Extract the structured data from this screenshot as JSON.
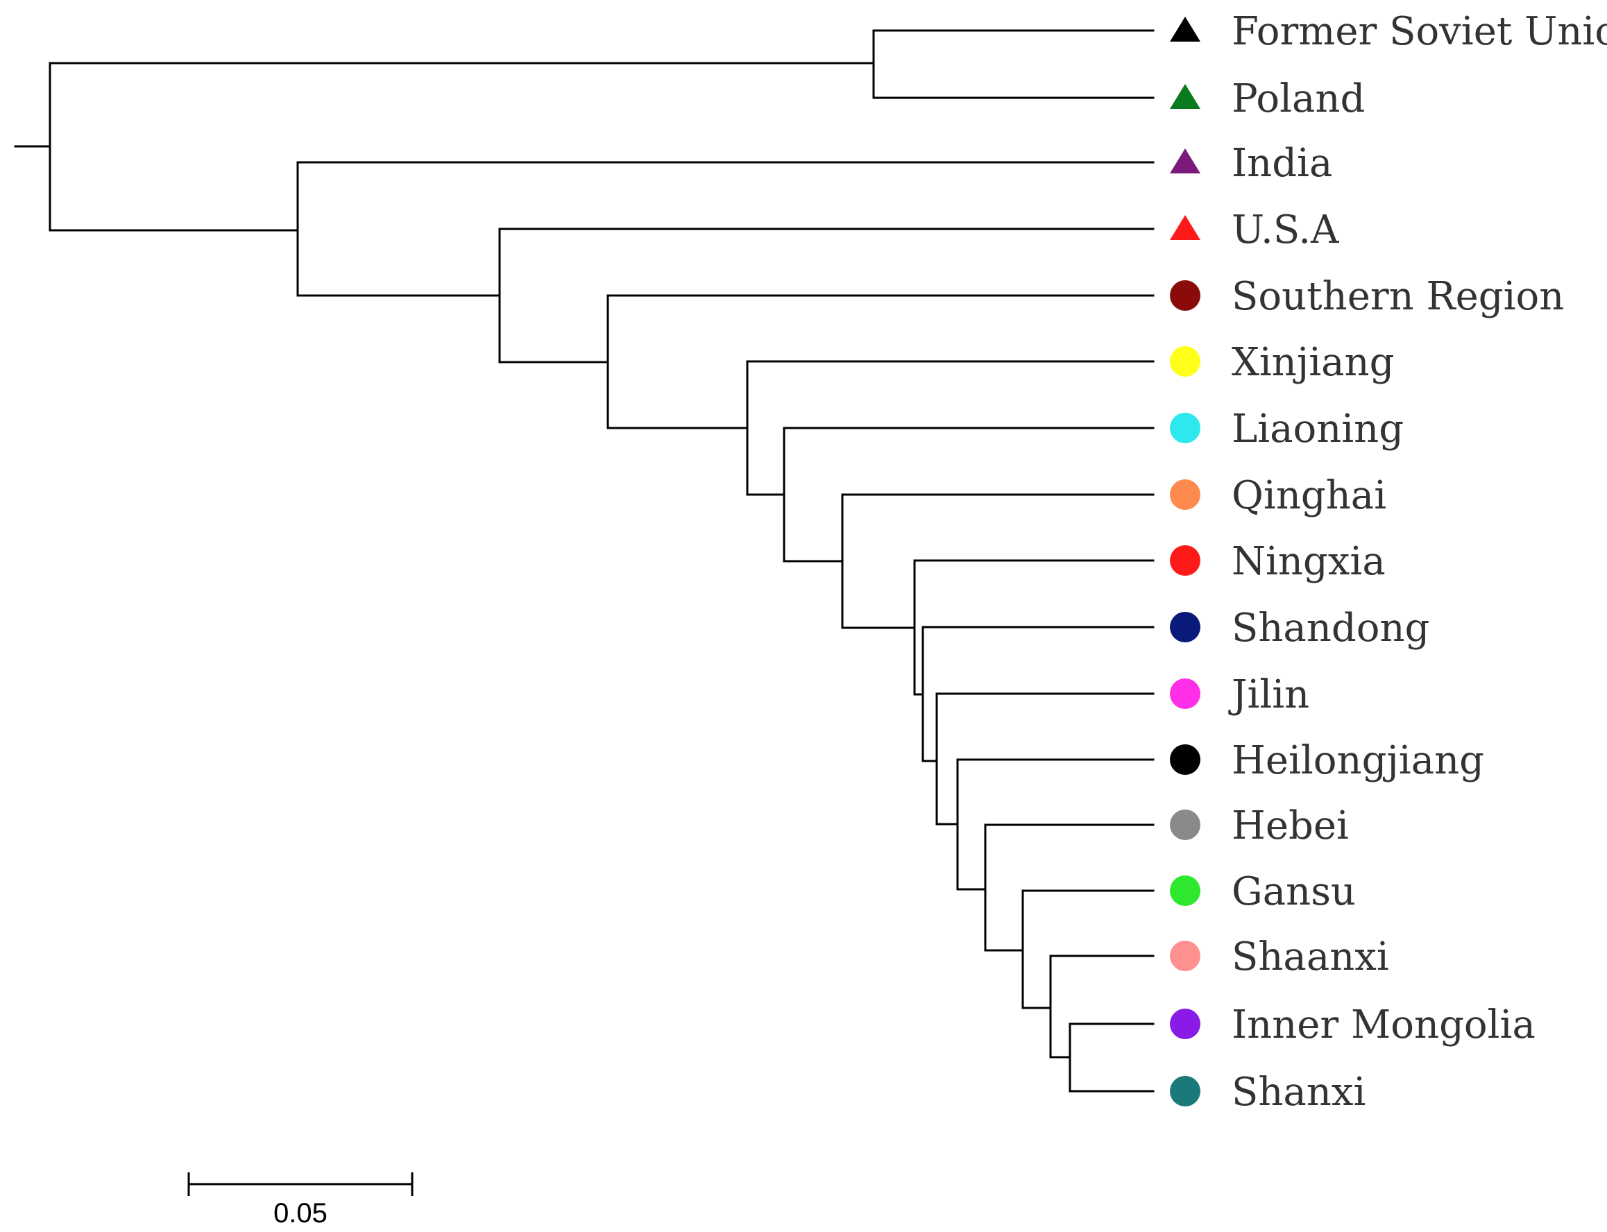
{
  "figure": {
    "type": "phylogenetic-tree",
    "description_text": "",
    "scale_bar_label": "0.05"
  },
  "taxa": [
    {
      "label": "Former Soviet Union",
      "marker": "triangle",
      "color": "#000000"
    },
    {
      "label": "Poland",
      "marker": "triangle",
      "color": "#0a7a1e"
    },
    {
      "label": "India",
      "marker": "triangle",
      "color": "#7a1a7a"
    },
    {
      "label": "U.S.A",
      "marker": "triangle",
      "color": "#ff1a1a"
    },
    {
      "label": "Southern Region",
      "marker": "circle",
      "color": "#8b0a0a"
    },
    {
      "label": "Xinjiang",
      "marker": "circle",
      "color": "#ffff1a"
    },
    {
      "label": "Liaoning",
      "marker": "circle",
      "color": "#2ee8ee"
    },
    {
      "label": "Qinghai",
      "marker": "circle",
      "color": "#ff8a50"
    },
    {
      "label": "Ningxia",
      "marker": "circle",
      "color": "#ff1a1a"
    },
    {
      "label": "Shandong",
      "marker": "circle",
      "color": "#0a1a7a"
    },
    {
      "label": "Jilin",
      "marker": "circle",
      "color": "#ff2ee8"
    },
    {
      "label": "Heilongjiang",
      "marker": "circle",
      "color": "#000000"
    },
    {
      "label": "Hebei",
      "marker": "circle",
      "color": "#8a8a8a"
    },
    {
      "label": "Gansu",
      "marker": "circle",
      "color": "#2ee82e"
    },
    {
      "label": "Shaanxi",
      "marker": "circle",
      "color": "#ff9090"
    },
    {
      "label": "Inner Mongolia",
      "marker": "circle",
      "color": "#8a1ae8"
    },
    {
      "label": "Shanxi",
      "marker": "circle",
      "color": "#1a7a7a"
    }
  ]
}
